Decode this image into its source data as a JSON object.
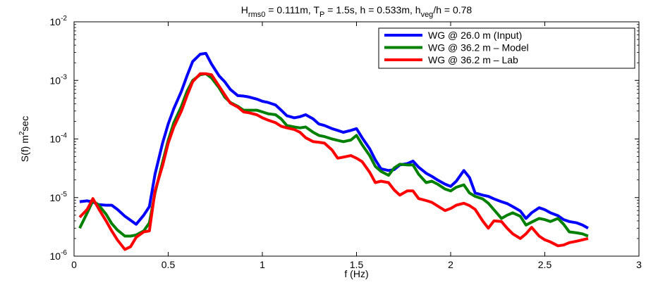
{
  "chart_data": {
    "type": "line",
    "title": "H_rms0 = 0.111m, T_P = 1.5s, h = 0.533m, h_veg/h = 0.78",
    "title_parts": [
      "H",
      "rms0",
      " = 0.111m, T",
      "P",
      " = 1.5s, h = 0.533m, h",
      "veg",
      "/h = 0.78"
    ],
    "xlabel": "f (Hz)",
    "ylabel": "S(f) m²sec",
    "ylabel_parts": [
      "S(f) m",
      "2",
      "sec"
    ],
    "xlim": [
      0,
      3
    ],
    "ylim": [
      1e-06,
      0.01
    ],
    "yscale": "log",
    "grid": false,
    "legend_position": "top-right",
    "x_ticks": [
      "0",
      "0.5",
      "1",
      "1.5",
      "2",
      "2.5",
      "3"
    ],
    "y_ticks": [
      {
        "base": "10",
        "exp": "-6"
      },
      {
        "base": "10",
        "exp": "-5"
      },
      {
        "base": "10",
        "exp": "-4"
      },
      {
        "base": "10",
        "exp": "-3"
      },
      {
        "base": "10",
        "exp": "-2"
      }
    ],
    "series": [
      {
        "name": "WG @ 26.0 m (Input)",
        "color": "#0000ff",
        "x": [
          0.03,
          0.07,
          0.1,
          0.13,
          0.17,
          0.2,
          0.23,
          0.27,
          0.3,
          0.33,
          0.37,
          0.4,
          0.43,
          0.47,
          0.5,
          0.53,
          0.57,
          0.6,
          0.63,
          0.67,
          0.7,
          0.73,
          0.77,
          0.8,
          0.83,
          0.87,
          0.9,
          0.93,
          0.97,
          1.0,
          1.03,
          1.07,
          1.1,
          1.13,
          1.17,
          1.2,
          1.23,
          1.27,
          1.3,
          1.33,
          1.37,
          1.4,
          1.43,
          1.47,
          1.5,
          1.53,
          1.57,
          1.6,
          1.63,
          1.67,
          1.7,
          1.73,
          1.77,
          1.8,
          1.83,
          1.87,
          1.9,
          1.93,
          1.97,
          2.0,
          2.03,
          2.07,
          2.1,
          2.13,
          2.17,
          2.2,
          2.23,
          2.27,
          2.3,
          2.33,
          2.37,
          2.4,
          2.43,
          2.47,
          2.5,
          2.53,
          2.57,
          2.6,
          2.63,
          2.67,
          2.7,
          2.73
        ],
        "y": [
          8.5e-06,
          8.8e-06,
          8.4e-06,
          7.6e-06,
          7.4e-06,
          7.4e-06,
          6.3e-06,
          4.8e-06,
          4.1e-06,
          3.5e-06,
          5e-06,
          7e-06,
          2.5e-05,
          8.5e-05,
          0.00018,
          0.00033,
          0.00065,
          0.0012,
          0.0021,
          0.0028,
          0.0029,
          0.0019,
          0.0012,
          0.00095,
          0.0007,
          0.00055,
          0.00054,
          0.00052,
          0.00048,
          0.00044,
          0.00042,
          0.00038,
          0.00031,
          0.00025,
          0.00023,
          0.00024,
          0.00026,
          0.00022,
          0.00018,
          0.00017,
          0.00015,
          0.00014,
          0.00013,
          0.00014,
          0.00015,
          0.000105,
          6.8e-05,
          4.4e-05,
          3.1e-05,
          2.9e-05,
          3e-05,
          3.6e-05,
          3.8e-05,
          4.2e-05,
          3.3e-05,
          2.6e-05,
          2.3e-05,
          2e-05,
          1.7e-05,
          1.55e-05,
          1.9e-05,
          2.9e-05,
          2.2e-05,
          1.2e-05,
          1.1e-05,
          1.05e-05,
          9.5e-06,
          8.5e-06,
          7.9e-06,
          7e-06,
          5.9e-06,
          4.4e-06,
          5.5e-06,
          6.7e-06,
          6.2e-06,
          5.5e-06,
          4.9e-06,
          4.2e-06,
          3.9e-06,
          3.7e-06,
          3.4e-06,
          3e-06
        ]
      },
      {
        "name": "WG @ 36.2 m – Model",
        "color": "#008000",
        "x": [
          0.03,
          0.07,
          0.1,
          0.13,
          0.17,
          0.2,
          0.23,
          0.27,
          0.3,
          0.33,
          0.37,
          0.4,
          0.43,
          0.47,
          0.5,
          0.53,
          0.57,
          0.6,
          0.63,
          0.67,
          0.7,
          0.73,
          0.77,
          0.8,
          0.83,
          0.87,
          0.9,
          0.93,
          0.97,
          1.0,
          1.03,
          1.07,
          1.1,
          1.13,
          1.17,
          1.2,
          1.23,
          1.27,
          1.3,
          1.33,
          1.37,
          1.4,
          1.43,
          1.47,
          1.5,
          1.53,
          1.57,
          1.6,
          1.63,
          1.67,
          1.7,
          1.73,
          1.77,
          1.8,
          1.83,
          1.87,
          1.9,
          1.93,
          1.97,
          2.0,
          2.03,
          2.07,
          2.1,
          2.13,
          2.17,
          2.2,
          2.23,
          2.27,
          2.3,
          2.33,
          2.37,
          2.4,
          2.43,
          2.47,
          2.5,
          2.53,
          2.57,
          2.6,
          2.63,
          2.67,
          2.7,
          2.73
        ],
        "y": [
          3e-06,
          5.5e-06,
          8.8e-06,
          7.5e-06,
          5.2e-06,
          3.6e-06,
          2.8e-06,
          2.2e-06,
          2.2e-06,
          2.3e-06,
          2.7e-06,
          3.7e-06,
          1.2e-05,
          4e-05,
          9.5e-05,
          0.00019,
          0.00036,
          0.00065,
          0.001,
          0.00125,
          0.0013,
          0.0011,
          0.00075,
          0.00052,
          0.00042,
          0.00036,
          0.00031,
          0.00031,
          0.00031,
          0.00029,
          0.00027,
          0.00026,
          0.00022,
          0.00017,
          0.00016,
          0.000155,
          0.00016,
          0.00013,
          0.000115,
          0.00011,
          0.0001,
          9.5e-05,
          9e-05,
          9.6e-05,
          0.000115,
          8e-05,
          5.2e-05,
          3.4e-05,
          2.8e-05,
          2.4e-05,
          3.2e-05,
          3.7e-05,
          3.6e-05,
          3.6e-05,
          2.5e-05,
          1.8e-05,
          1.9e-05,
          1.7e-05,
          1.4e-05,
          1.3e-05,
          1.5e-05,
          1.65e-05,
          1.2e-05,
          1.05e-05,
          9.5e-06,
          8e-06,
          6.2e-06,
          4.4e-06,
          5e-06,
          5.5e-06,
          4.8e-06,
          3.4e-06,
          3.8e-06,
          4.4e-06,
          4.2e-06,
          3.9e-06,
          4.4e-06,
          3.5e-06,
          2.6e-06,
          2.5e-06,
          2.4e-06,
          2.2e-06
        ]
      },
      {
        "name": "WG @ 36.2 m – Lab",
        "color": "#ff0000",
        "x": [
          0.03,
          0.07,
          0.1,
          0.13,
          0.17,
          0.2,
          0.23,
          0.27,
          0.3,
          0.33,
          0.37,
          0.4,
          0.43,
          0.47,
          0.5,
          0.53,
          0.57,
          0.6,
          0.63,
          0.67,
          0.7,
          0.73,
          0.77,
          0.8,
          0.83,
          0.87,
          0.9,
          0.93,
          0.97,
          1.0,
          1.03,
          1.07,
          1.1,
          1.13,
          1.17,
          1.2,
          1.23,
          1.27,
          1.3,
          1.33,
          1.37,
          1.4,
          1.43,
          1.47,
          1.5,
          1.53,
          1.57,
          1.6,
          1.63,
          1.67,
          1.7,
          1.73,
          1.77,
          1.8,
          1.83,
          1.87,
          1.9,
          1.93,
          1.97,
          2.0,
          2.03,
          2.07,
          2.1,
          2.13,
          2.17,
          2.2,
          2.23,
          2.27,
          2.3,
          2.33,
          2.37,
          2.4,
          2.43,
          2.47,
          2.5,
          2.53,
          2.57,
          2.6,
          2.63,
          2.67,
          2.7,
          2.73
        ],
        "y": [
          4.6e-06,
          6.3e-06,
          9.6e-06,
          6.5e-06,
          4e-06,
          2.7e-06,
          1.9e-06,
          1.3e-06,
          1.45e-06,
          2.1e-06,
          2.6e-06,
          2.7e-06,
          1.3e-05,
          3.5e-05,
          8.5e-05,
          0.00016,
          0.0003,
          0.00055,
          0.00095,
          0.0013,
          0.0013,
          0.00125,
          0.0008,
          0.00057,
          0.00041,
          0.00035,
          0.00029,
          0.00028,
          0.00026,
          0.00023,
          0.00021,
          0.00019,
          0.000165,
          0.000155,
          0.000145,
          0.00013,
          0.000105,
          9e-05,
          8.8e-05,
          8.5e-05,
          6.5e-05,
          4.7e-05,
          4.9e-05,
          5.2e-05,
          4.7e-05,
          4.1e-05,
          2.7e-05,
          1.8e-05,
          1.9e-05,
          1.8e-05,
          1.35e-05,
          1.1e-05,
          1.3e-05,
          1.3e-05,
          9.6e-06,
          8.9e-06,
          8.3e-06,
          7.2e-06,
          6e-06,
          6.5e-06,
          7.4e-06,
          8e-06,
          7.3e-06,
          6.3e-06,
          4e-06,
          3e-06,
          4e-06,
          3.9e-06,
          3e-06,
          2.4e-06,
          2e-06,
          2.4e-06,
          3.1e-06,
          2.2e-06,
          1.9e-06,
          1.75e-06,
          1.5e-06,
          1.55e-06,
          1.7e-06,
          1.8e-06,
          1.9e-06,
          2e-06
        ]
      }
    ]
  }
}
